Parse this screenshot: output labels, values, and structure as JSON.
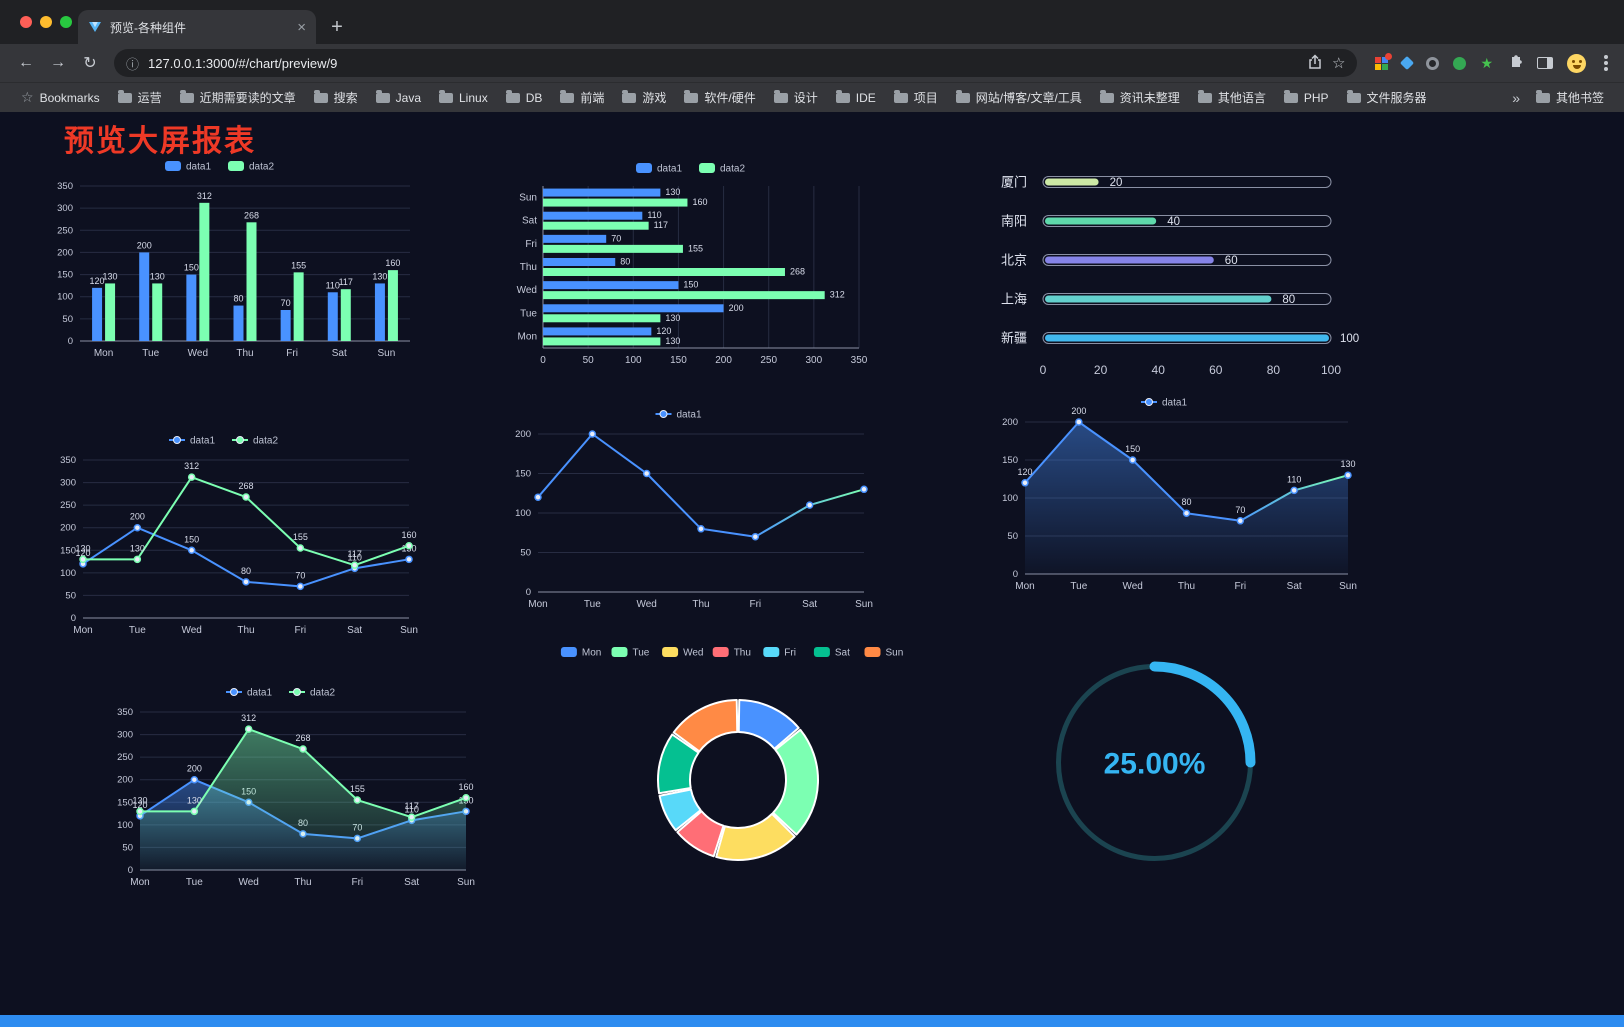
{
  "browser": {
    "tab": {
      "title": "预览-各种组件",
      "close_glyph": "×"
    },
    "new_tab_glyph": "+",
    "nav": {
      "back_glyph": "←",
      "forward_glyph": "→",
      "reload_glyph": "↻",
      "info_glyph": "ⓘ"
    },
    "url": "127.0.0.1:3000/#/chart/preview/9",
    "omnibox_star_glyph": "☆",
    "bookmarks": {
      "star_glyph": "☆",
      "label": "Bookmarks",
      "items": [
        "运营",
        "近期需要读的文章",
        "搜索",
        "Java",
        "Linux",
        "DB",
        "前端",
        "游戏",
        "软件/硬件",
        "设计",
        "IDE",
        "项目",
        "网站/博客/文章/工具",
        "资讯未整理",
        "其他语言",
        "PHP",
        "文件服务器"
      ],
      "overflow_glyph": "»",
      "other_label": "其他书签"
    }
  },
  "page": {
    "title": "预览大屏报表",
    "title_color": "#ee3926",
    "background": "#0d1020",
    "accent_bar_color": "#2e8cf0"
  },
  "chart_data": [
    {
      "id": "bar-vertical",
      "type": "bar",
      "categories": [
        "Mon",
        "Tue",
        "Wed",
        "Thu",
        "Fri",
        "Sat",
        "Sun"
      ],
      "series": [
        {
          "name": "data1",
          "color": "#4992ff",
          "values": [
            120,
            200,
            150,
            80,
            70,
            110,
            130
          ]
        },
        {
          "name": "data2",
          "color": "#7cffb2",
          "values": [
            130,
            130,
            312,
            268,
            155,
            117,
            160
          ]
        }
      ],
      "ylim": [
        0,
        350
      ],
      "yticks": [
        0,
        50,
        100,
        150,
        200,
        250,
        300,
        350
      ],
      "legend_position": "top"
    },
    {
      "id": "bar-horizontal",
      "type": "hbar",
      "categories": [
        "Mon",
        "Tue",
        "Wed",
        "Thu",
        "Fri",
        "Sat",
        "Sun"
      ],
      "series": [
        {
          "name": "data1",
          "color": "#4992ff",
          "values": [
            120,
            200,
            150,
            80,
            70,
            110,
            130
          ]
        },
        {
          "name": "data2",
          "color": "#7cffb2",
          "values": [
            130,
            130,
            312,
            268,
            155,
            117,
            160
          ]
        }
      ],
      "xlim": [
        0,
        350
      ],
      "xticks": [
        0,
        50,
        100,
        150,
        200,
        250,
        300,
        350
      ],
      "legend_position": "top"
    },
    {
      "id": "progress",
      "type": "progress",
      "max": 100,
      "xticks": [
        0,
        20,
        40,
        60,
        80,
        100
      ],
      "items": [
        {
          "label": "厦门",
          "value": 20,
          "color": "#cde9a5"
        },
        {
          "label": "南阳",
          "value": 40,
          "color": "#5fd9ab"
        },
        {
          "label": "北京",
          "value": 60,
          "color": "#8684e8"
        },
        {
          "label": "上海",
          "value": 80,
          "color": "#63d0cd"
        },
        {
          "label": "新疆",
          "value": 100,
          "color": "#41b8ee"
        }
      ]
    },
    {
      "id": "line-double",
      "type": "line",
      "categories": [
        "Mon",
        "Tue",
        "Wed",
        "Thu",
        "Fri",
        "Sat",
        "Sun"
      ],
      "series": [
        {
          "name": "data1",
          "color": "#4992ff",
          "values": [
            120,
            200,
            150,
            80,
            70,
            110,
            130
          ],
          "labels": true
        },
        {
          "name": "data2",
          "color": "#7cffb2",
          "values": [
            130,
            130,
            312,
            268,
            155,
            117,
            160
          ],
          "labels": true
        }
      ],
      "ylim": [
        0,
        350
      ],
      "yticks": [
        0,
        50,
        100,
        150,
        200,
        250,
        300,
        350
      ],
      "legend_position": "top"
    },
    {
      "id": "line-single",
      "type": "line",
      "categories": [
        "Mon",
        "Tue",
        "Wed",
        "Thu",
        "Fri",
        "Sat",
        "Sun"
      ],
      "series": [
        {
          "name": "data1",
          "color": "#4992ff",
          "color2": "#7cffb2",
          "values": [
            120,
            200,
            150,
            80,
            70,
            110,
            130
          ],
          "labels": false
        }
      ],
      "ylim": [
        0,
        200
      ],
      "yticks": [
        0,
        50,
        100,
        150,
        200
      ],
      "legend_position": "top"
    },
    {
      "id": "area-single",
      "type": "line",
      "categories": [
        "Mon",
        "Tue",
        "Wed",
        "Thu",
        "Fri",
        "Sat",
        "Sun"
      ],
      "series": [
        {
          "name": "data1",
          "color": "#4992ff",
          "color2": "#7cffb2",
          "area": true,
          "values": [
            120,
            200,
            150,
            80,
            70,
            110,
            130
          ],
          "labels": true
        }
      ],
      "ylim": [
        0,
        200
      ],
      "yticks": [
        0,
        50,
        100,
        150,
        200
      ],
      "legend_position": "top"
    },
    {
      "id": "area-double",
      "type": "line",
      "categories": [
        "Mon",
        "Tue",
        "Wed",
        "Thu",
        "Fri",
        "Sat",
        "Sun"
      ],
      "series": [
        {
          "name": "data1",
          "color": "#4992ff",
          "area": true,
          "values": [
            120,
            200,
            150,
            80,
            70,
            110,
            130
          ],
          "labels": true
        },
        {
          "name": "data2",
          "color": "#7cffb2",
          "area": true,
          "values": [
            130,
            130,
            312,
            268,
            155,
            117,
            160
          ],
          "labels": true
        }
      ],
      "ylim": [
        0,
        350
      ],
      "yticks": [
        0,
        50,
        100,
        150,
        200,
        250,
        300,
        350
      ],
      "legend_position": "top"
    },
    {
      "id": "donut",
      "type": "donut",
      "labels": [
        "Mon",
        "Tue",
        "Wed",
        "Thu",
        "Fri",
        "Sat",
        "Sun"
      ],
      "values": [
        120,
        200,
        150,
        80,
        70,
        110,
        130
      ],
      "colors": [
        "#4992ff",
        "#7cffb2",
        "#fddd60",
        "#ff6e76",
        "#58d9f9",
        "#05c091",
        "#ff8a45"
      ],
      "legend_position": "top"
    },
    {
      "id": "gauge",
      "type": "gauge",
      "value": 25,
      "label": "25.00%",
      "color": "#35b5f2",
      "track_color": "#1b4450"
    }
  ]
}
